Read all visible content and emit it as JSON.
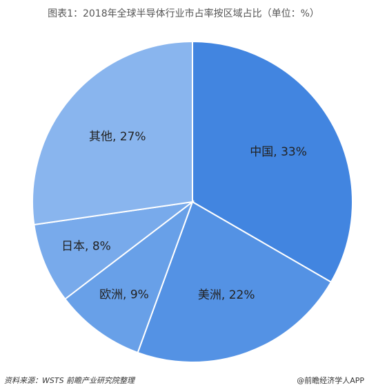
{
  "chart_data": {
    "type": "pie",
    "title": "图表1：2018年全球半导体行业市占率按区域占比（单位：%）",
    "values": [
      33,
      22,
      9,
      8,
      27
    ],
    "value_labels": [
      "中国, 33%",
      "美洲, 22%",
      "欧洲, 9%",
      "日本, 8%",
      "其他, 27%"
    ],
    "colors": [
      "#4285e0",
      "#5492e4",
      "#68a0e8",
      "#78aaeb",
      "#89b5ee"
    ],
    "source": "资料来源：WSTS 前瞻产业研究院整理",
    "credit": "@前瞻经济学人APP"
  }
}
